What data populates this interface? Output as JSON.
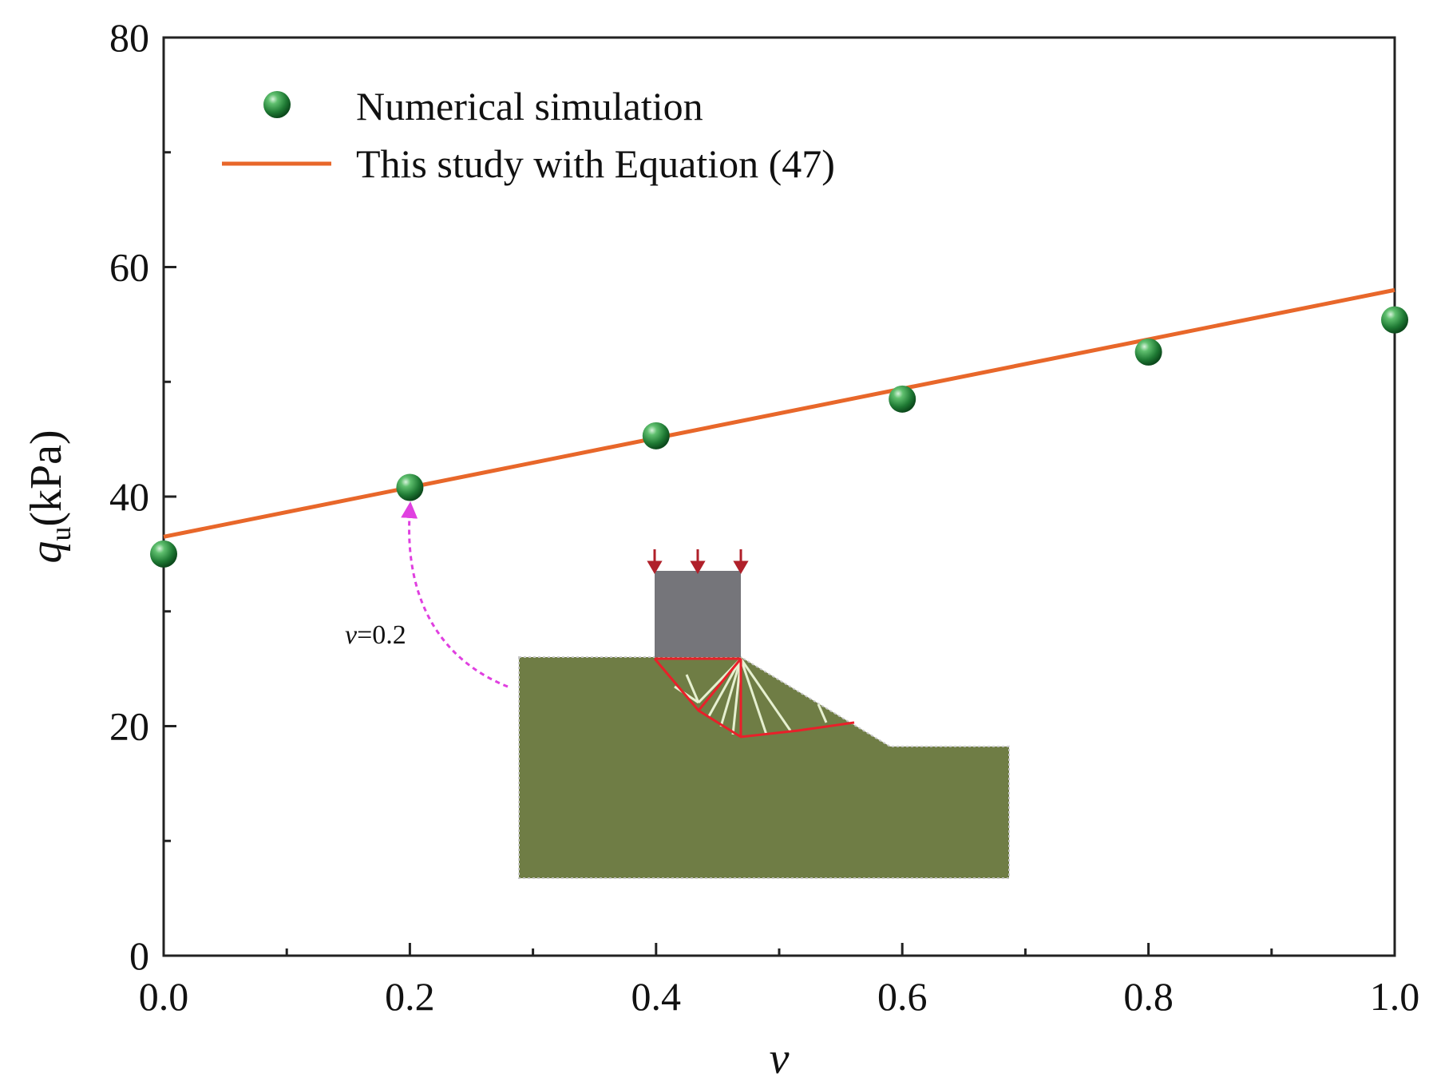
{
  "chart_data": {
    "type": "scatter+line",
    "xlabel": "v",
    "ylabel_main": "q",
    "ylabel_sub": "u",
    "ylabel_unit": "(kPa)",
    "xlim": [
      0.0,
      1.0
    ],
    "ylim": [
      0,
      80
    ],
    "x_ticks": [
      0.0,
      0.2,
      0.4,
      0.6,
      0.8,
      1.0
    ],
    "x_tick_labels": [
      "0.0",
      "0.2",
      "0.4",
      "0.6",
      "0.8",
      "1.0"
    ],
    "x_minor_ticks": [
      0.1,
      0.3,
      0.5,
      0.7,
      0.9
    ],
    "y_ticks": [
      0,
      20,
      40,
      60,
      80
    ],
    "y_tick_labels": [
      "0",
      "20",
      "40",
      "60",
      "80"
    ],
    "y_minor_ticks": [
      10,
      30,
      50,
      70
    ],
    "grid": false,
    "legend_position": "top-left",
    "series": [
      {
        "name": "Numerical simulation",
        "kind": "scatter",
        "color": "#2e8b3e",
        "x": [
          0.0,
          0.2,
          0.4,
          0.6,
          0.8,
          1.0
        ],
        "y": [
          35.0,
          40.8,
          45.3,
          48.5,
          52.6,
          55.4
        ]
      },
      {
        "name": "This study with Equation (47)",
        "kind": "line",
        "color": "#e8672a",
        "x": [
          0.0,
          1.0
        ],
        "y": [
          36.5,
          58.0
        ]
      }
    ],
    "annotation": {
      "label_var": "v",
      "label_value": "=0.2",
      "points_to_x": 0.2,
      "points_to_y": 40.8,
      "arrow_color": "#e040e0"
    },
    "inset": {
      "description_colors": {
        "soil": "#6f7d45",
        "footing": "#75757a",
        "mechanism": "#e8202a",
        "fans": "#e6f0d0",
        "load_arrows": "#b0202a"
      }
    }
  }
}
